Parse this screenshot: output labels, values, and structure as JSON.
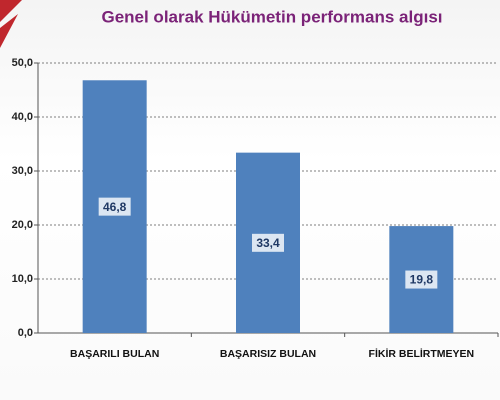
{
  "chart_data": {
    "type": "bar",
    "title": "Genel olarak Hükümetin performans algısı",
    "categories": [
      "BAŞARILI BULAN",
      "BAŞARISIZ BULAN",
      "FİKİR BELİRTMEYEN"
    ],
    "values": [
      46.8,
      33.4,
      19.8
    ],
    "value_labels": [
      "46,8",
      "33,4",
      "19,8"
    ],
    "color": "#4f81bd",
    "ylim": [
      0,
      50
    ],
    "yticks": [
      {
        "value": 0,
        "label": "0,0"
      },
      {
        "value": 10,
        "label": "10,0"
      },
      {
        "value": 20,
        "label": "20,0"
      },
      {
        "value": 30,
        "label": "30,0"
      },
      {
        "value": 40,
        "label": "40,0"
      },
      {
        "value": 50,
        "label": "50,0"
      }
    ],
    "grid": true
  }
}
